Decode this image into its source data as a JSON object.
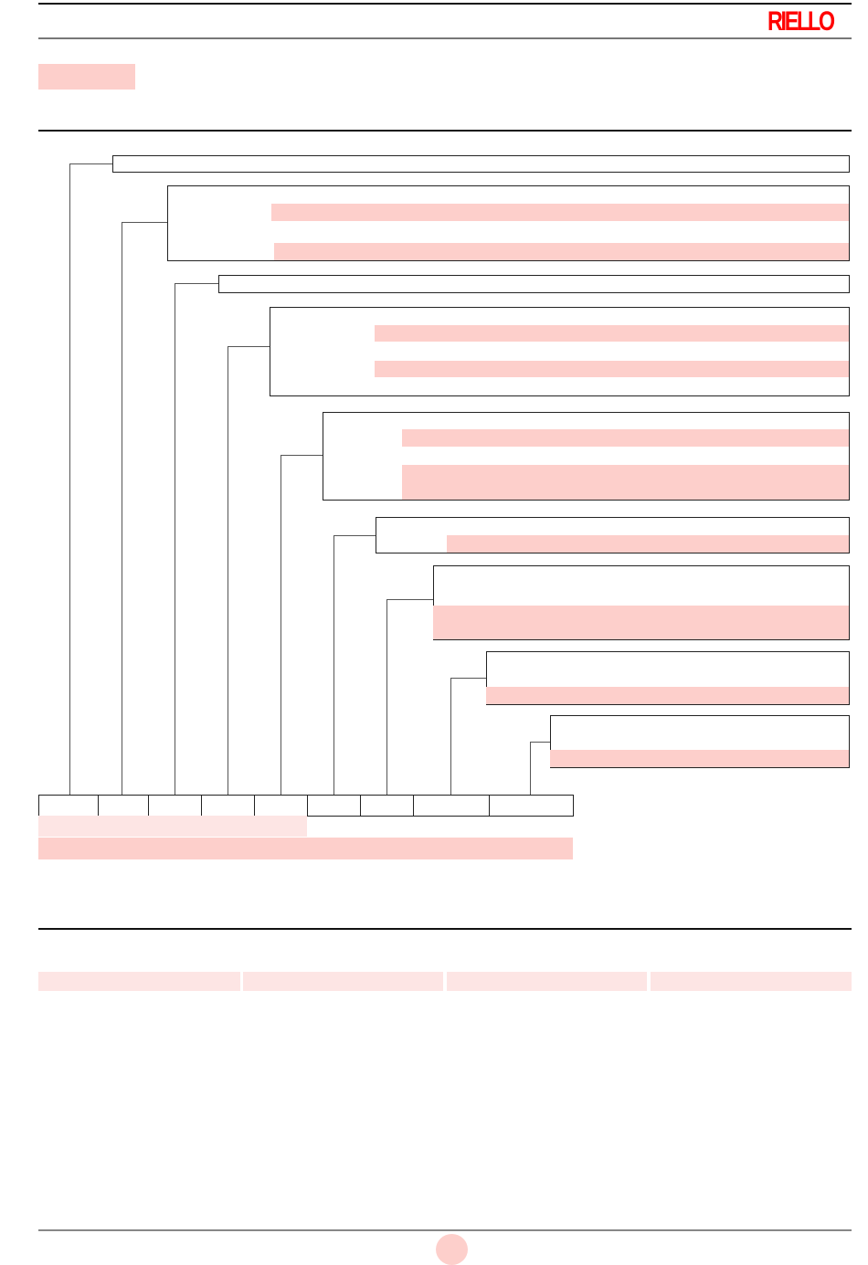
{
  "header": {
    "logo_text": "RIELLO",
    "brand_color": "#ff0000"
  },
  "highlight_color": "#fdcfcb",
  "highlight_light_color": "#fde5e4"
}
